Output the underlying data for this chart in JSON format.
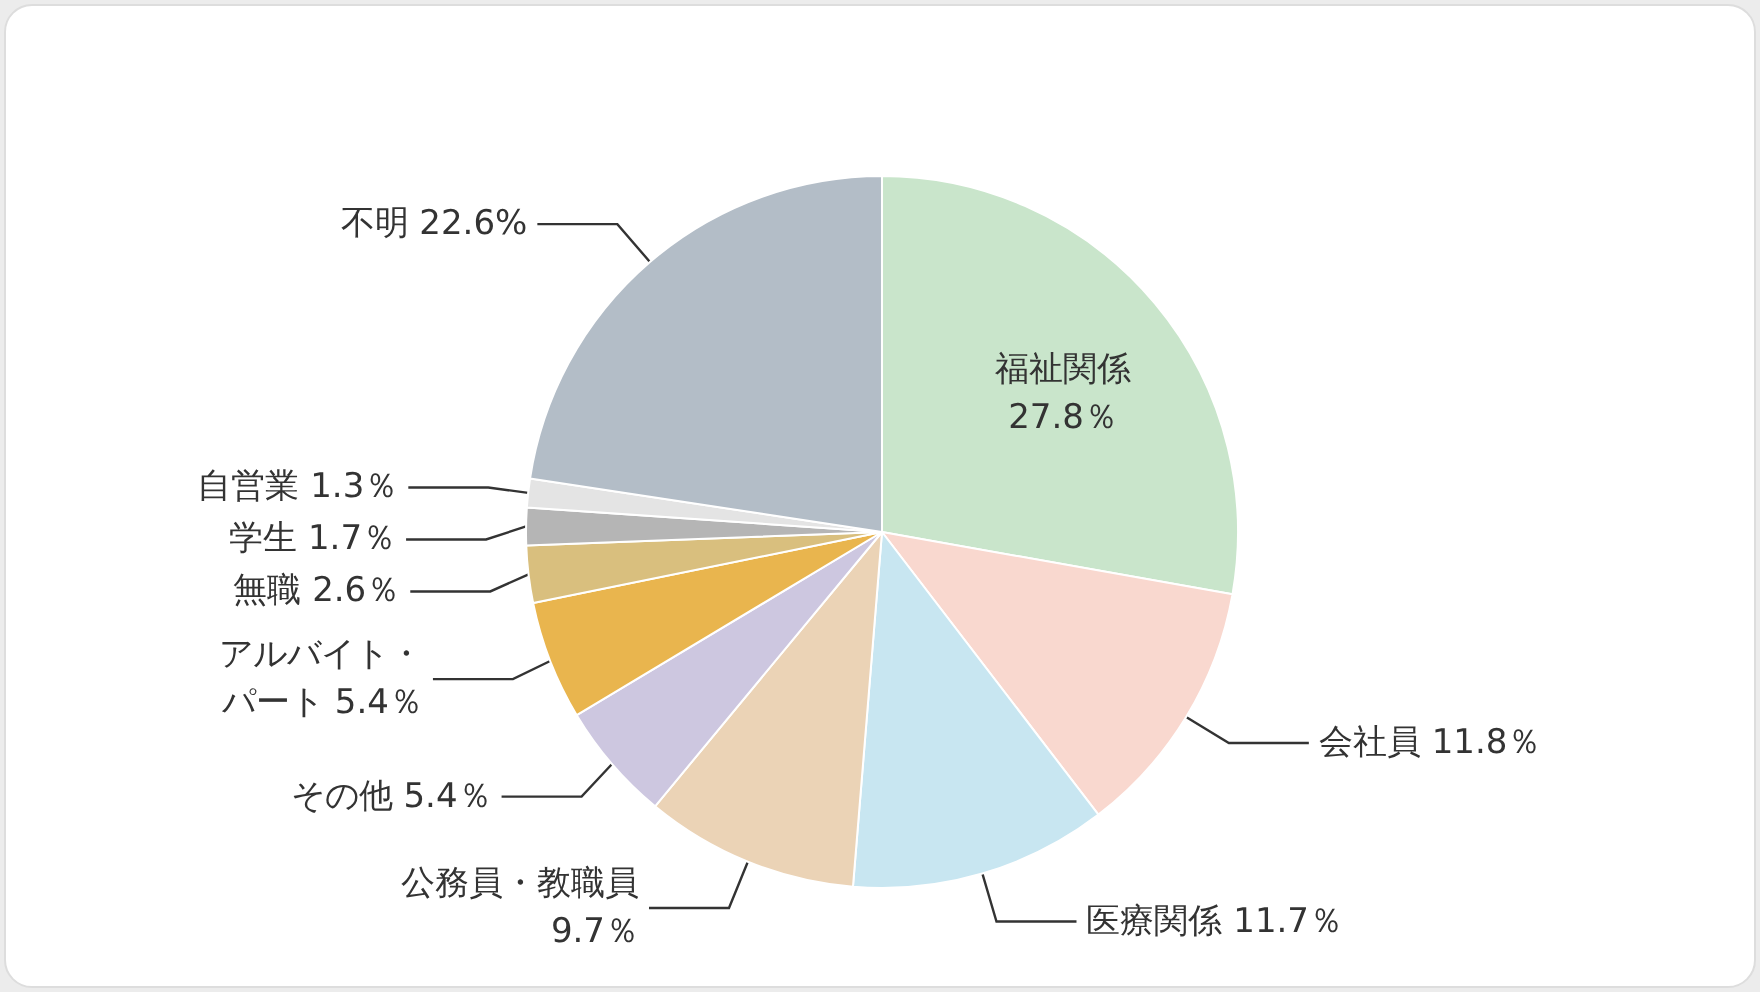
{
  "chart_data": {
    "type": "pie",
    "categories": [
      "福祉関係",
      "会社員",
      "医療関係",
      "公務員・教職員",
      "その他",
      "アルバイト・パート",
      "無職",
      "学生",
      "自営業",
      "不明"
    ],
    "values": [
      27.8,
      11.8,
      11.7,
      9.7,
      5.4,
      5.4,
      2.6,
      1.7,
      1.3,
      22.6
    ],
    "value_labels": [
      "27.8％",
      "11.8％",
      "11.7％",
      "9.7％",
      "5.4％",
      "5.4％",
      "2.6％",
      "1.7％",
      "1.3％",
      "22.6%"
    ],
    "colors": [
      "#c9e5cb",
      "#f9d8cf",
      "#c8e6f1",
      "#ebd3b6",
      "#cdc7e0",
      "#e9b54e",
      "#d9bf7e",
      "#b5b5b5",
      "#e4e4e4",
      "#b3bdc7"
    ]
  }
}
